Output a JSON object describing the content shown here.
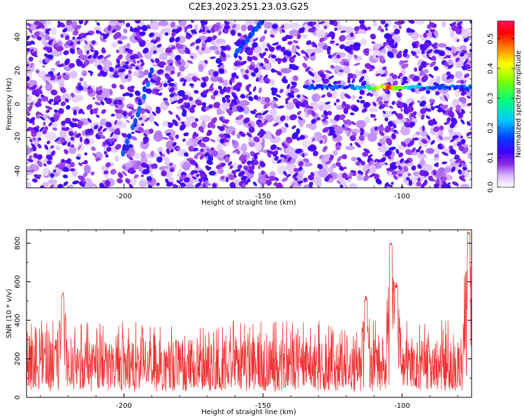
{
  "title": "C2E3.2023.251.23.03.G25",
  "chart_data": [
    {
      "type": "heatmap",
      "xlabel": "Height of straight line (km)",
      "ylabel": "Frequency (Hz)",
      "xlim": [
        -235,
        -75
      ],
      "ylim": [
        -50,
        50
      ],
      "x_ticks": [
        -200,
        -150,
        -100
      ],
      "y_ticks": [
        -40,
        -20,
        0,
        20,
        40
      ],
      "colorbar": {
        "label": "Normalized spectral amplitude",
        "range": [
          0,
          0.56
        ],
        "ticks": [
          0.0,
          0.1,
          0.2,
          0.3,
          0.4,
          0.5
        ],
        "colormap": [
          "#ffffff",
          "#d8b8ff",
          "#8a2be2",
          "#4000ff",
          "#0040ff",
          "#00c8ff",
          "#00ff80",
          "#80ff00",
          "#ffff00",
          "#ff8000",
          "#ff0000",
          "#ff1060"
        ]
      },
      "features": [
        {
          "kind": "horizontal band",
          "frequency_hz": 10,
          "x_range": [
            -135,
            -75
          ],
          "peak_amplitude": 0.5,
          "peak_x": -105
        },
        {
          "kind": "diagonal streak",
          "from": [
            -200,
            -30
          ],
          "to": [
            -190,
            20
          ]
        },
        {
          "kind": "diagonal streak",
          "from": [
            -160,
            30
          ],
          "to": [
            -150,
            50
          ]
        }
      ]
    },
    {
      "type": "line",
      "xlabel": "Height of straight line (km)",
      "ylabel": "SNR (10 * v/v)",
      "xlim": [
        -235,
        -75
      ],
      "ylim": [
        0,
        870
      ],
      "x_ticks": [
        -200,
        -150,
        -100
      ],
      "y_ticks": [
        0,
        200,
        400,
        600,
        800
      ],
      "series": [
        {
          "color": "#ee3333",
          "baseline_range": [
            50,
            300
          ],
          "typical_max": 400,
          "peaks": [
            {
              "x": -222,
              "y": 550
            },
            {
              "x": -113,
              "y": 530
            },
            {
              "x": -104,
              "y": 810
            },
            {
              "x": -102,
              "y": 600
            },
            {
              "x": -76,
              "y": 870
            }
          ]
        }
      ]
    }
  ]
}
